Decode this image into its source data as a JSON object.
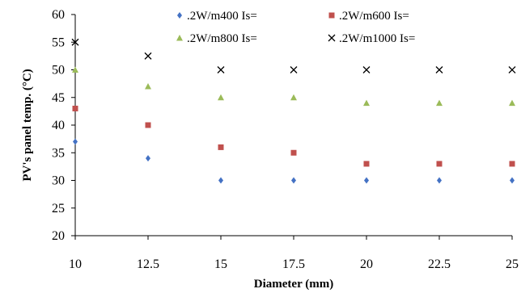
{
  "chart_data": {
    "type": "scatter",
    "title": "",
    "xlabel": "Diameter (mm)",
    "ylabel": "PV's panel temp. (°C)",
    "xlim": [
      10,
      25
    ],
    "ylim": [
      20,
      60
    ],
    "x_ticks": [
      "10",
      "12.5",
      "15",
      "17.5",
      "20",
      "22.5",
      "25"
    ],
    "y_ticks": [
      "20",
      "25",
      "30",
      "35",
      "40",
      "45",
      "50",
      "55",
      "60"
    ],
    "grid": false,
    "trendlines": "polynomial fit per series",
    "legend_position": "top",
    "series": [
      {
        "name": ".2W/m400 Is=",
        "marker": "diamond",
        "color": "#4472C4",
        "x": [
          10,
          12.5,
          15,
          17.5,
          20,
          22.5,
          25
        ],
        "y": [
          37,
          34,
          30,
          30,
          30,
          30,
          30
        ]
      },
      {
        "name": ".2W/m600 Is=",
        "marker": "square",
        "color": "#C0504D",
        "x": [
          10,
          12.5,
          15,
          17.5,
          20,
          22.5,
          25
        ],
        "y": [
          43,
          40,
          36,
          35,
          33,
          33,
          33
        ]
      },
      {
        "name": ".2W/m800 Is=",
        "marker": "triangle",
        "color": "#9BBB59",
        "x": [
          10,
          12.5,
          15,
          17.5,
          20,
          22.5,
          25
        ],
        "y": [
          50,
          47,
          45,
          45,
          44,
          44,
          44
        ]
      },
      {
        "name": ".2W/m1000 Is=",
        "marker": "x",
        "color": "#000000",
        "x": [
          10,
          12.5,
          15,
          17.5,
          20,
          22.5,
          25
        ],
        "y": [
          55,
          52.5,
          50,
          50,
          50,
          50,
          50
        ]
      }
    ]
  }
}
